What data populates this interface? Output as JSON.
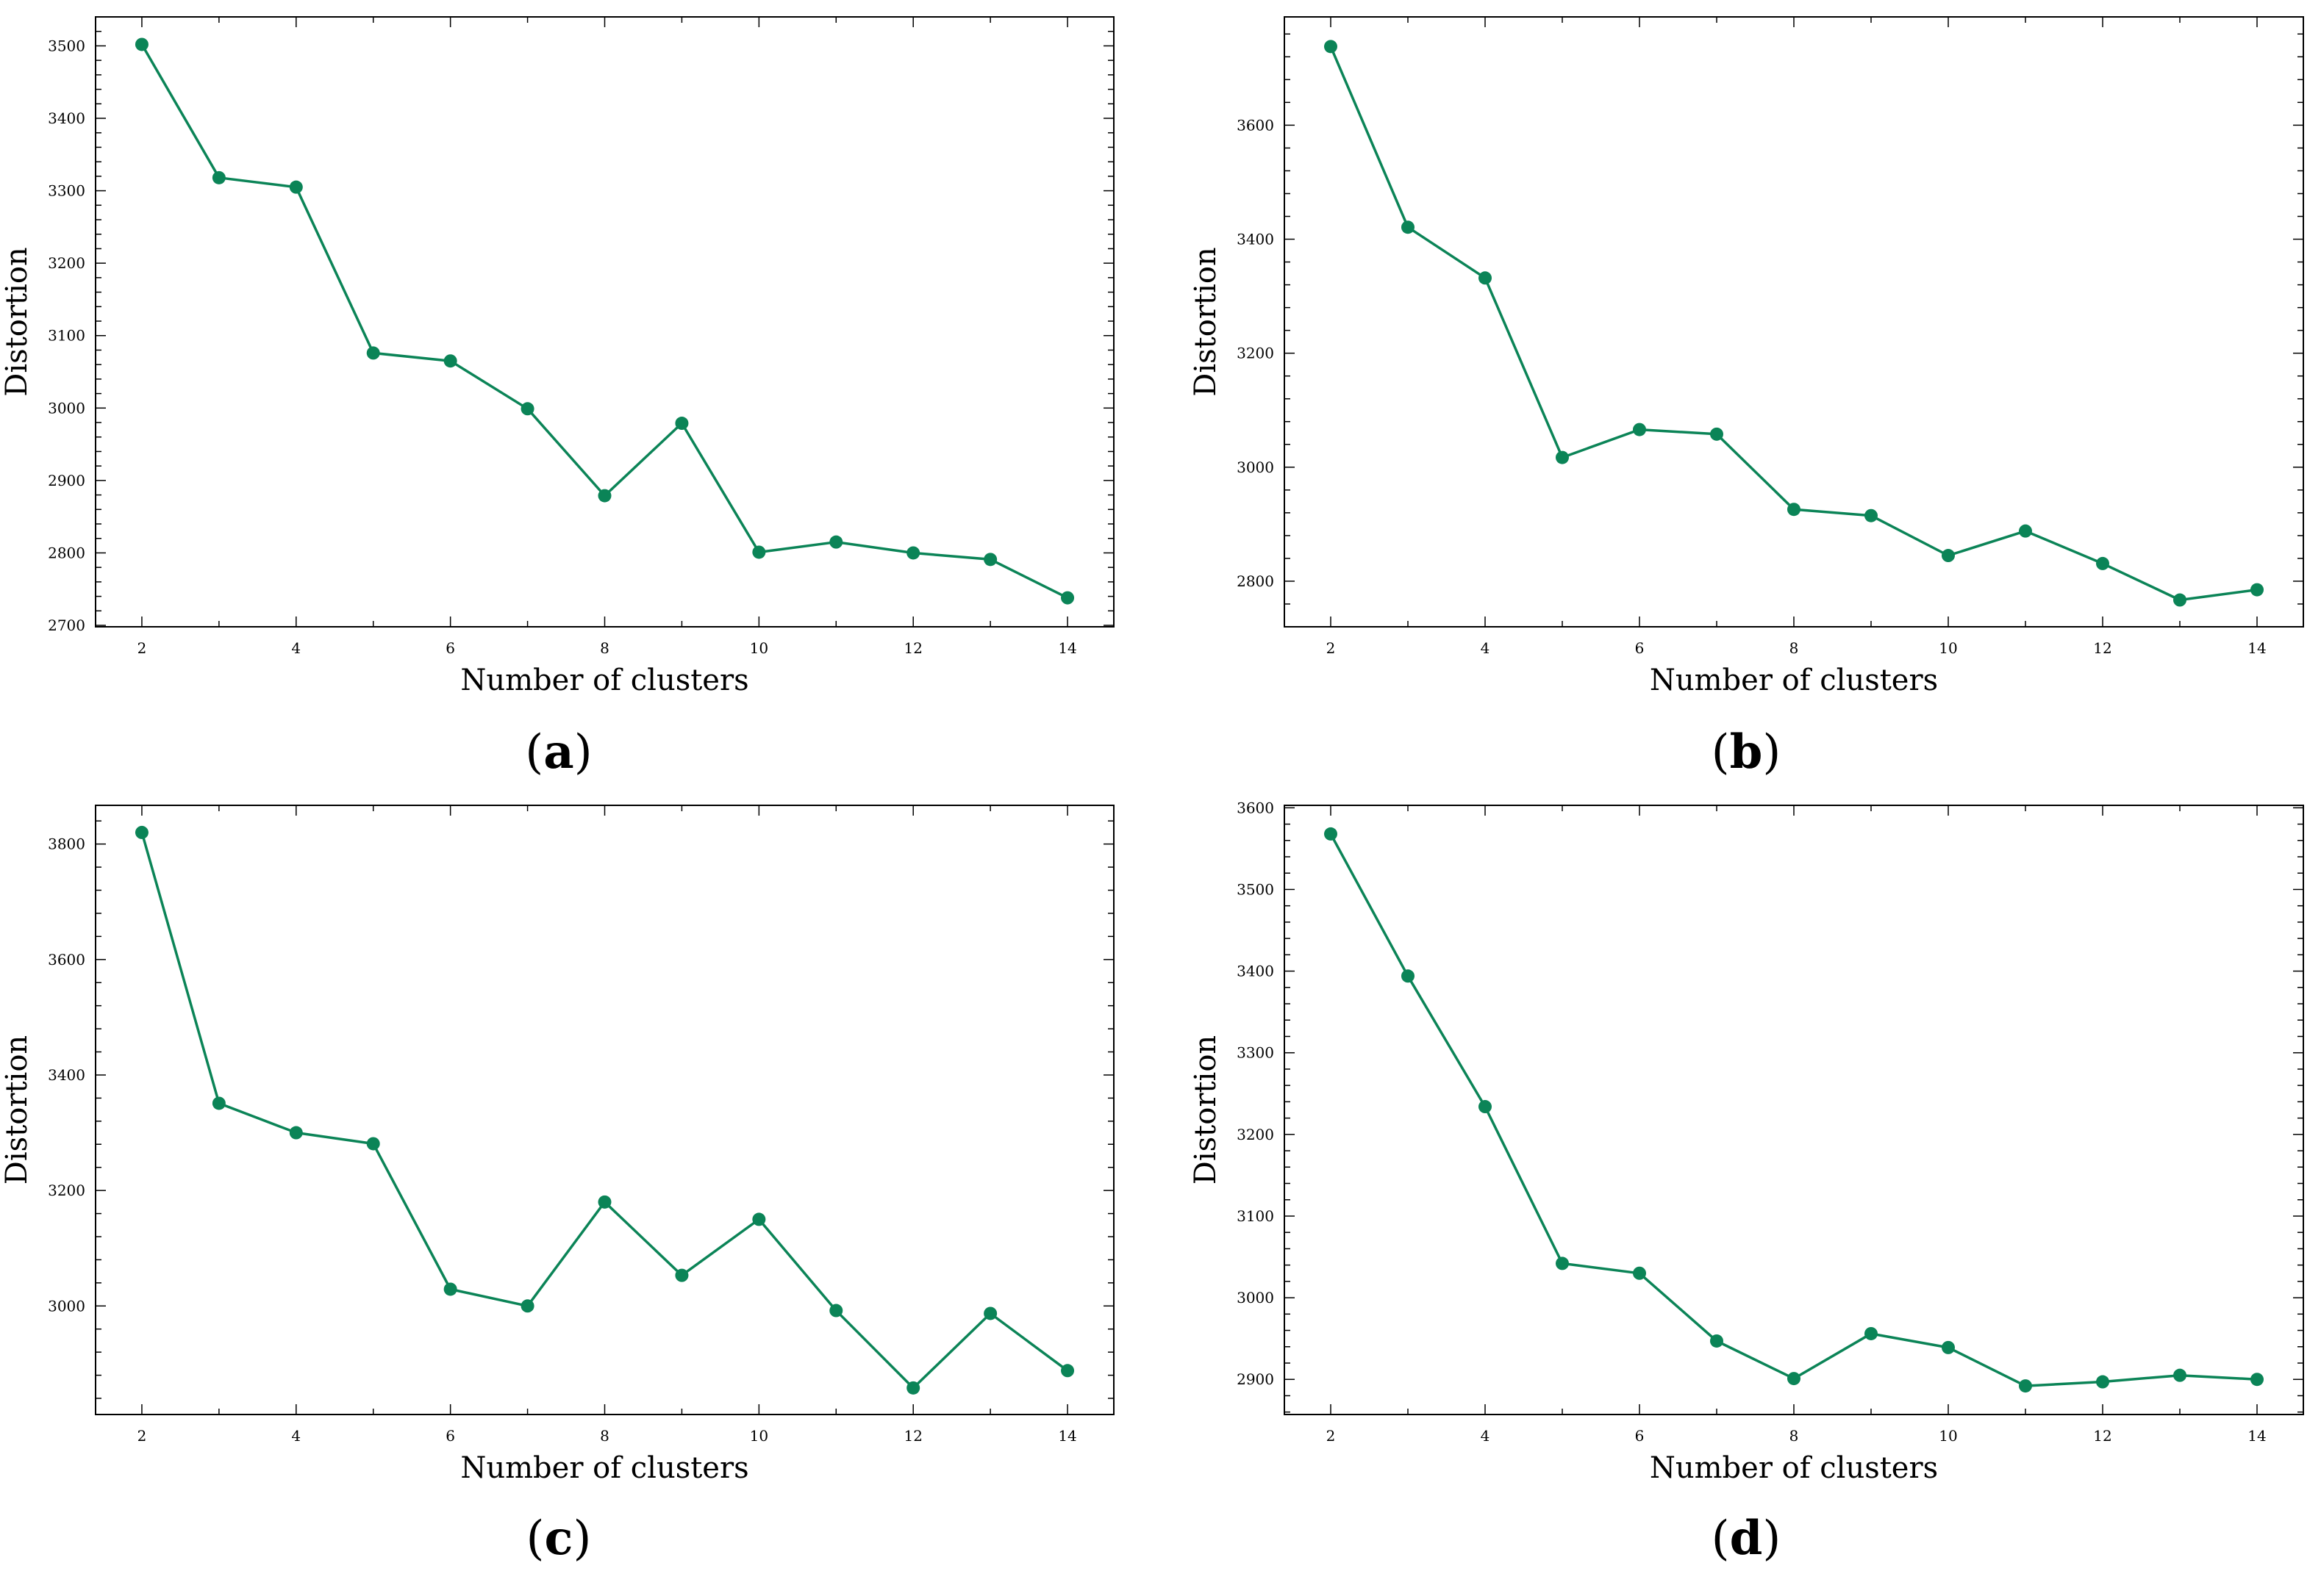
{
  "figure": {
    "line_color": "#0b8457",
    "panels_caption_format": "(x)"
  },
  "chart_data": [
    {
      "type": "line",
      "panel_label": "a",
      "title": "",
      "xlabel": "Number of clusters",
      "ylabel": "Distortion",
      "x": [
        2,
        3,
        4,
        5,
        6,
        7,
        8,
        9,
        10,
        11,
        12,
        13,
        14
      ],
      "y": [
        3502,
        3318,
        3305,
        3076,
        3065,
        2999,
        2879,
        2979,
        2801,
        2815,
        2800,
        2791,
        2738
      ],
      "xlim": [
        1.4,
        14.6
      ],
      "ylim": [
        2698,
        3540
      ],
      "xticks": [
        2,
        4,
        6,
        8,
        10,
        12,
        14
      ],
      "yticks": [
        2700,
        2800,
        2900,
        3000,
        3100,
        3200,
        3300,
        3400,
        3500
      ],
      "grid": false
    },
    {
      "type": "line",
      "panel_label": "b",
      "title": "",
      "xlabel": "Number of clusters",
      "ylabel": "Distortion",
      "x": [
        2,
        3,
        4,
        5,
        6,
        7,
        8,
        9,
        10,
        11,
        12,
        13,
        14
      ],
      "y": [
        3738,
        3421,
        3332,
        3017,
        3066,
        3058,
        2926,
        2915,
        2845,
        2888,
        2831,
        2767,
        2785
      ],
      "xlim": [
        1.4,
        14.6
      ],
      "ylim": [
        2720,
        3790
      ],
      "xticks": [
        2,
        4,
        6,
        8,
        10,
        12,
        14
      ],
      "yticks": [
        2800,
        3000,
        3200,
        3400,
        3600
      ],
      "grid": false
    },
    {
      "type": "line",
      "panel_label": "c",
      "title": "",
      "xlabel": "Number of clusters",
      "ylabel": "Distortion",
      "x": [
        2,
        3,
        4,
        5,
        6,
        7,
        8,
        9,
        10,
        11,
        12,
        13,
        14
      ],
      "y": [
        3820,
        3351,
        3300,
        3281,
        3029,
        3000,
        3180,
        3053,
        3150,
        2992,
        2858,
        2987,
        2888
      ],
      "xlim": [
        1.4,
        14.6
      ],
      "ylim": [
        2812,
        3867
      ],
      "xticks": [
        2,
        4,
        6,
        8,
        10,
        12,
        14
      ],
      "yticks": [
        3000,
        3200,
        3400,
        3600,
        3800
      ],
      "grid": false
    },
    {
      "type": "line",
      "panel_label": "d",
      "title": "",
      "xlabel": "Number of clusters",
      "ylabel": "Distortion",
      "x": [
        2,
        3,
        4,
        5,
        6,
        7,
        8,
        9,
        10,
        11,
        12,
        13,
        14
      ],
      "y": [
        3568,
        3394,
        3234,
        3042,
        3030,
        2947,
        2901,
        2956,
        2939,
        2892,
        2897,
        2905,
        2900
      ],
      "xlim": [
        1.4,
        14.6
      ],
      "ylim": [
        2857,
        3603
      ],
      "xticks": [
        2,
        4,
        6,
        8,
        10,
        12,
        14
      ],
      "yticks": [
        2900,
        3000,
        3100,
        3200,
        3300,
        3400,
        3500,
        3600
      ],
      "grid": false
    }
  ]
}
